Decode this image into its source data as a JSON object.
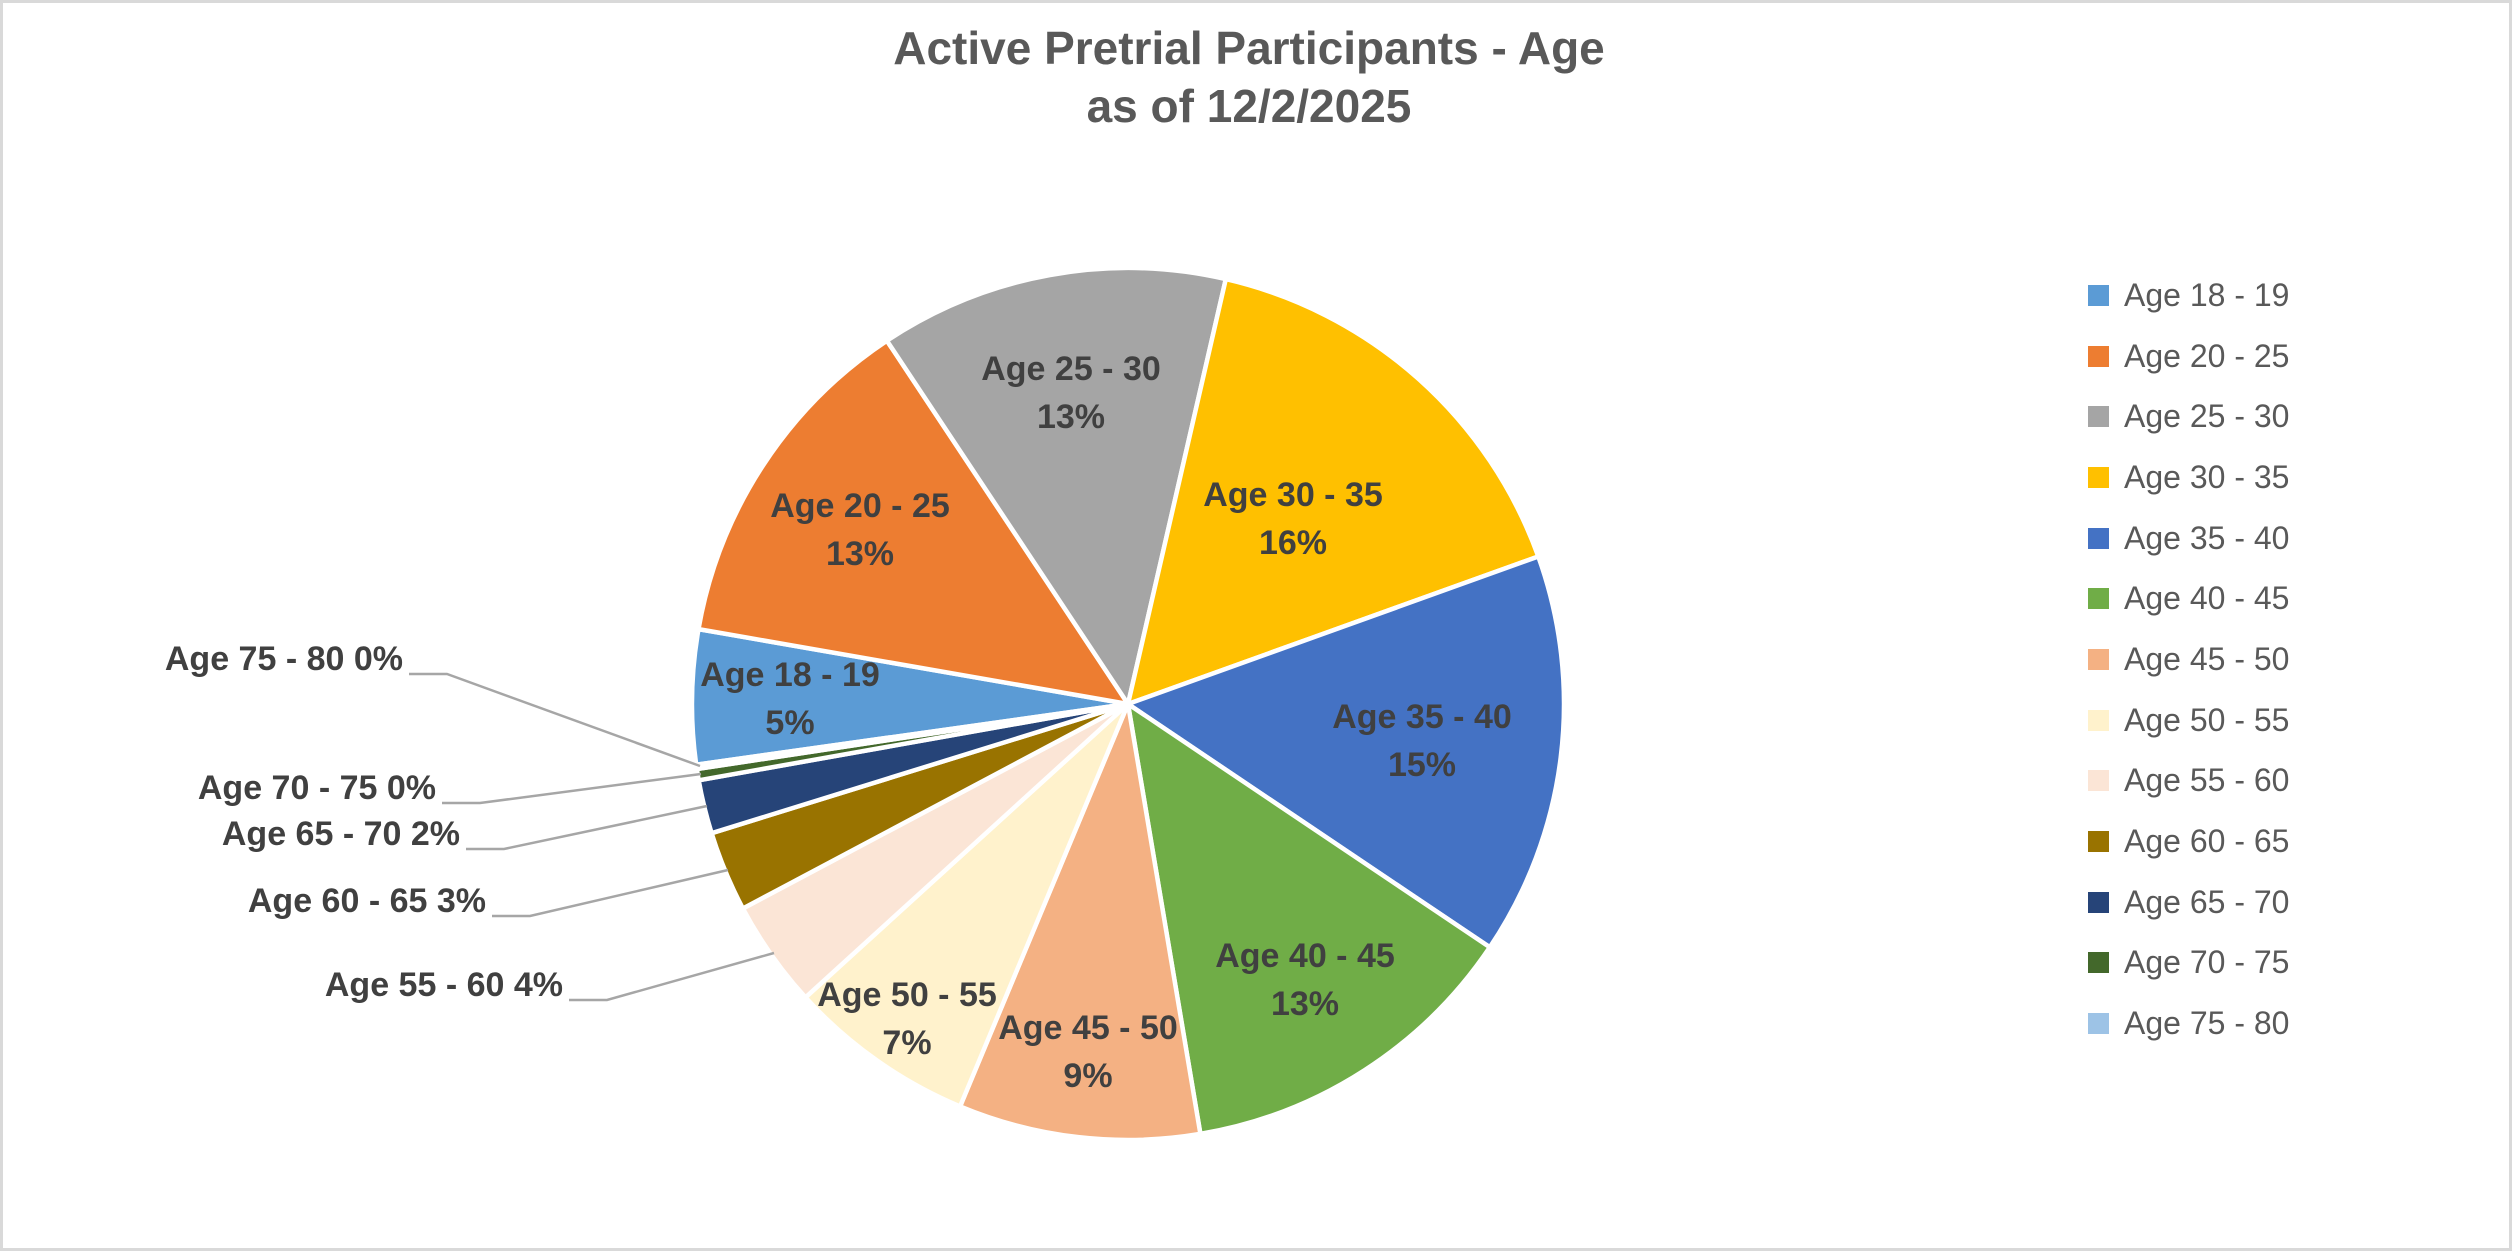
{
  "title": {
    "line1": "Active Pretrial Participants - Age",
    "line2": "as of 12/2/2025"
  },
  "chart_data": {
    "type": "pie",
    "title": "Active Pretrial Participants - Age as of 12/2/2025",
    "categories": [
      "Age 18 - 19",
      "Age 20 - 25",
      "Age 25 - 30",
      "Age 30 - 35",
      "Age 35 - 40",
      "Age 40 - 45",
      "Age 45 - 50",
      "Age 50 - 55",
      "Age 55 - 60",
      "Age 60 - 65",
      "Age 65 - 70",
      "Age 70 - 75",
      "Age 75 - 80"
    ],
    "values": [
      5,
      13,
      13,
      16,
      15,
      13,
      9,
      7,
      4,
      3,
      2,
      0,
      0
    ],
    "unit": "percent",
    "pct_labels": [
      "5%",
      "13%",
      "13%",
      "16%",
      "15%",
      "13%",
      "9%",
      "7%",
      "4%",
      "3%",
      "2%",
      "0%",
      "0%"
    ],
    "colors": [
      "#5B9BD5",
      "#ED7D31",
      "#A5A5A5",
      "#FFC000",
      "#4472C4",
      "#70AD47",
      "#F4B183",
      "#FFF2CC",
      "#FBE5D6",
      "#997300",
      "#264478",
      "#43682B",
      "#9DC3E6"
    ],
    "start_angle_clockwise_from_top_deg": 262,
    "legend_position": "right",
    "grid": false,
    "label_placement": "large slices labeled inside (category + percent on two lines); slices <= 4% labeled outside left with gray leader lines",
    "outside_labels": [
      "Age 55 - 60  4%",
      "Age 60 - 65 3%",
      "Age 65 - 70 2%",
      "Age 70 - 75 0%",
      "Age 75 - 80 0%"
    ],
    "label_color": "#404040",
    "title_color": "#595959",
    "leader_line_color": "#A6A6A6"
  },
  "legend": {
    "items": [
      {
        "label": "Age 18 - 19"
      },
      {
        "label": "Age 20 - 25"
      },
      {
        "label": "Age 25 - 30"
      },
      {
        "label": "Age 30 - 35"
      },
      {
        "label": "Age 35 - 40"
      },
      {
        "label": "Age 40 - 45"
      },
      {
        "label": "Age 45 - 50"
      },
      {
        "label": "Age 50 - 55"
      },
      {
        "label": "Age 55 - 60"
      },
      {
        "label": "Age 60 - 65"
      },
      {
        "label": "Age 65 - 70"
      },
      {
        "label": "Age 70 - 75"
      },
      {
        "label": "Age 75 - 80"
      }
    ]
  }
}
